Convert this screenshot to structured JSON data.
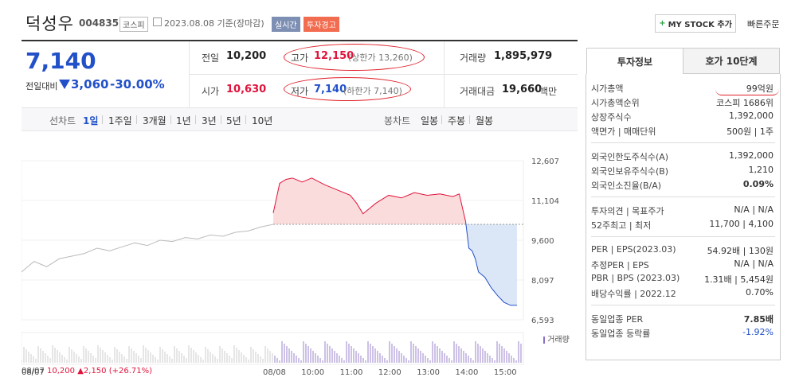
{
  "header": {
    "stock_name": "덕성우",
    "stock_code": "004835",
    "market_badge": "코스피",
    "date_text": "2023.08.08  기준(장마감)",
    "realtime_badge": "실시간",
    "warning_badge": "투자경고",
    "mystock_button": "MY STOCK 추가",
    "quick_order": "빠른주문"
  },
  "price": {
    "current": "7,140",
    "change_label": "전일대비",
    "change_value": "3,060",
    "change_pct": "-30.00%"
  },
  "quote": {
    "prev_close_label": "전일",
    "prev_close": "10,200",
    "high_label": "고가",
    "high": "12,150",
    "upper_limit": "(상한가 13,260)",
    "volume_label": "거래량",
    "volume": "1,895,979",
    "open_label": "시가",
    "open": "10,630",
    "low_label": "저가",
    "low": "7,140",
    "lower_limit": "(하한가 7,140)",
    "amount_label": "거래대금",
    "amount": "19,660",
    "amount_unit": "백만"
  },
  "line_tabs": {
    "label": "선차트",
    "items": [
      "1일",
      "1주일",
      "3개월",
      "1년",
      "3년",
      "5년",
      "10년"
    ]
  },
  "candle_tabs": {
    "label": "봉차트",
    "items": [
      "일봉",
      "주봉",
      "월봉"
    ]
  },
  "colors": {
    "up": "#e0143c",
    "down": "#2150c9",
    "annotation": "#e0202a"
  },
  "chart_data": {
    "type": "area",
    "y_ticks": [
      "12,607",
      "11,104",
      "9,600",
      "8,097",
      "6,593"
    ],
    "ylim": [
      6593,
      12607
    ],
    "reference_price": 10200,
    "x_ticks": [
      "08/07",
      "08/08",
      "10:00",
      "11:00",
      "12:00",
      "13:00",
      "14:00",
      "15:00"
    ],
    "volume_label": "거래량",
    "footer": {
      "date": "08/07",
      "price": "10,200",
      "change": "2,150",
      "change_pct": "(+26.71%)"
    },
    "prev_day_x": [
      0,
      5,
      10,
      15,
      20,
      25,
      30,
      35,
      40,
      45,
      50,
      55,
      60,
      65,
      70,
      75,
      80,
      85,
      90,
      95,
      100
    ],
    "prev_day_y": [
      8400,
      8800,
      8600,
      8900,
      9000,
      9100,
      9300,
      9200,
      9350,
      9500,
      9400,
      9600,
      9550,
      9700,
      9650,
      9800,
      9750,
      9900,
      9950,
      10100,
      10200
    ],
    "today_x": [
      "09:00",
      "09:10",
      "09:20",
      "09:30",
      "09:45",
      "10:00",
      "10:20",
      "10:40",
      "11:00",
      "11:10",
      "11:20",
      "11:40",
      "12:00",
      "12:20",
      "12:40",
      "13:00",
      "13:20",
      "13:40",
      "13:50",
      "14:00",
      "14:05",
      "14:10",
      "14:15",
      "14:20",
      "14:30",
      "14:40",
      "14:50",
      "15:00",
      "15:10",
      "15:20"
    ],
    "today_y": [
      10630,
      11750,
      11900,
      11950,
      11800,
      11950,
      11700,
      11500,
      11300,
      11000,
      10600,
      11000,
      11300,
      11200,
      11400,
      11300,
      11350,
      11250,
      11350,
      10300,
      9300,
      9200,
      8900,
      8400,
      8200,
      7800,
      7500,
      7250,
      7140,
      7140
    ]
  },
  "right_panel": {
    "tab_active": "투자정보",
    "tab_other": "호가 10단계",
    "sections": [
      [
        {
          "label": "시가총액",
          "value": "99억원"
        },
        {
          "label": "시가총액순위",
          "value": "코스피 1686위"
        },
        {
          "label": "상장주식수",
          "value": "1,392,000"
        },
        {
          "label": "액면가 | 매매단위",
          "value": "500원 | 1주"
        }
      ],
      [
        {
          "label": "외국인한도주식수(A)",
          "value": "1,392,000"
        },
        {
          "label": "외국인보유주식수(B)",
          "value": "1,210"
        },
        {
          "label": "외국인소진율(B/A)",
          "value": "0.09%"
        }
      ],
      [
        {
          "label": "투자의견 | 목표주가",
          "value": "N/A | N/A"
        },
        {
          "label": "52주최고 | 최저",
          "value": "11,700 | 4,100"
        }
      ],
      [
        {
          "label": "PER | EPS(2023.03)",
          "value": "54.92배 | 130원"
        },
        {
          "label": "추정PER | EPS",
          "value": "N/A | N/A"
        },
        {
          "label": "PBR | BPS (2023.03)",
          "value": "1.31배 | 5,454원"
        },
        {
          "label": "배당수익률 | 2022.12",
          "value": "0.70%"
        }
      ],
      [
        {
          "label": "동일업종 PER",
          "value": "7.85배"
        },
        {
          "label": "동일업종 등락률",
          "value": "-1.92%"
        }
      ]
    ]
  }
}
